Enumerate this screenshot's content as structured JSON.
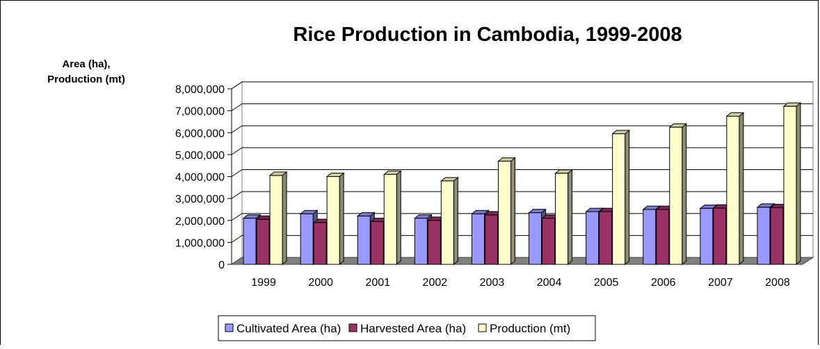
{
  "chart_data": {
    "type": "bar",
    "title": "Rice Production in Cambodia, 1999-2008",
    "ylabel_lines": [
      "Area (ha),",
      "Production (mt)"
    ],
    "categories": [
      "1999",
      "2000",
      "2001",
      "2002",
      "2003",
      "2004",
      "2005",
      "2006",
      "2007",
      "2008"
    ],
    "ylim": [
      0,
      8000000
    ],
    "yticks": [
      0,
      1000000,
      2000000,
      3000000,
      4000000,
      5000000,
      6000000,
      7000000,
      8000000
    ],
    "ytick_labels": [
      "0",
      "1,000,000",
      "2,000,000",
      "3,000,000",
      "4,000,000",
      "5,000,000",
      "6,000,000",
      "7,000,000",
      "8,000,000"
    ],
    "grid": true,
    "legend_position": "bottom",
    "series": [
      {
        "name": "Cultivated Area (ha)",
        "color": "#9999ff",
        "values": [
          2100000,
          2300000,
          2200000,
          2100000,
          2300000,
          2350000,
          2400000,
          2500000,
          2550000,
          2600000
        ]
      },
      {
        "name": "Harvested Area (ha)",
        "color": "#993366",
        "values": [
          2050000,
          1900000,
          1950000,
          2000000,
          2250000,
          2100000,
          2400000,
          2500000,
          2560000,
          2580000
        ]
      },
      {
        "name": "Production (mt)",
        "color": "#ffffcc",
        "values": [
          4050000,
          4000000,
          4100000,
          3800000,
          4700000,
          4150000,
          5950000,
          6250000,
          6750000,
          7200000
        ]
      }
    ]
  }
}
